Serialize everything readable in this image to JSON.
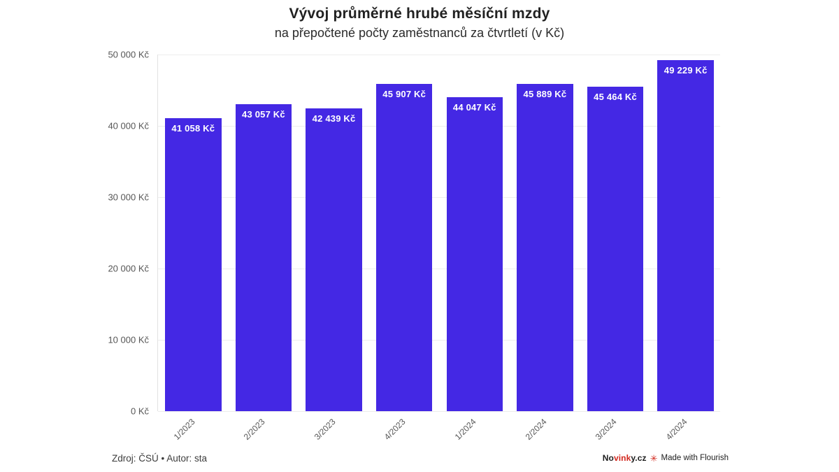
{
  "header": {
    "title": "Vývoj průměrné hrubé měsíční mzdy",
    "subtitle": "na přepočtené počty zaměstnanců za čtvrtletí (v Kč)"
  },
  "chart_data": {
    "type": "bar",
    "title": "Vývoj průměrné hrubé měsíční mzdy",
    "subtitle": "na přepočtené počty zaměstnanců za čtvrtletí (v Kč)",
    "categories": [
      "1/2023",
      "2/2023",
      "3/2023",
      "4/2023",
      "1/2024",
      "2/2024",
      "3/2024",
      "4/2024"
    ],
    "values": [
      41058,
      43057,
      42439,
      45907,
      44047,
      45889,
      45464,
      49229
    ],
    "value_labels": [
      "41 058 Kč",
      "43 057 Kč",
      "42 439 Kč",
      "45 907 Kč",
      "44 047 Kč",
      "45 889 Kč",
      "45 464 Kč",
      "49 229 Kč"
    ],
    "xlabel": "",
    "ylabel": "",
    "ylim": [
      0,
      50000
    ],
    "ytick_step": 10000,
    "ytick_labels": [
      "0 Kč",
      "10 000 Kč",
      "20 000 Kč",
      "30 000 Kč",
      "40 000 Kč",
      "50 000 Kč"
    ],
    "bar_color": "#4428e4",
    "label_color": "#ffffff",
    "grid": "horizontal",
    "legend": "none"
  },
  "footer": {
    "source": "Zdroj: ČSÚ • Autor: sta",
    "brand": {
      "part1": "No",
      "part2": "vink",
      "part3": "y.cz"
    },
    "brand_red": "#d2281e",
    "flower_icon": "✳",
    "flourish_label": "Made with Flourish"
  }
}
